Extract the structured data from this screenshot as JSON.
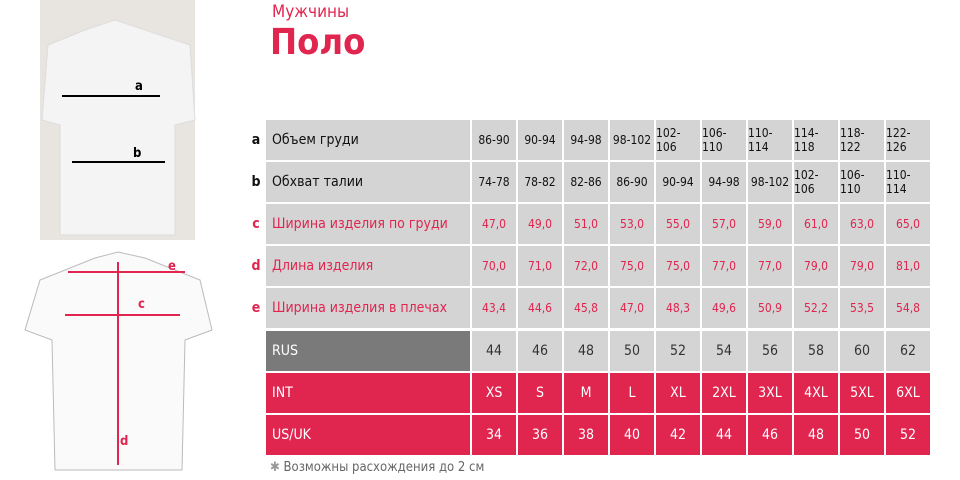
{
  "header": {
    "subtitle": "Мужчины",
    "title": "Поло"
  },
  "diagram": {
    "labels": [
      "a",
      "b",
      "c",
      "d",
      "e"
    ]
  },
  "table": {
    "measurements": [
      {
        "letter": "a",
        "label": "Объем груди",
        "cells": [
          "86-90",
          "90-94",
          "94-98",
          "98-102",
          "102-106",
          "106-110",
          "110-114",
          "114-118",
          "118-122",
          "122-126"
        ]
      },
      {
        "letter": "b",
        "label": "Обхват талии",
        "cells": [
          "74-78",
          "78-82",
          "82-86",
          "86-90",
          "90-94",
          "94-98",
          "98-102",
          "102-106",
          "106-110",
          "110-114"
        ]
      },
      {
        "letter": "c",
        "label": "Ширина изделия по груди",
        "cells": [
          "47,0",
          "49,0",
          "51,0",
          "53,0",
          "55,0",
          "57,0",
          "59,0",
          "61,0",
          "63,0",
          "65,0"
        ]
      },
      {
        "letter": "d",
        "label": "Длина изделия",
        "cells": [
          "70,0",
          "71,0",
          "72,0",
          "75,0",
          "75,0",
          "77,0",
          "77,0",
          "79,0",
          "79,0",
          "81,0"
        ]
      },
      {
        "letter": "e",
        "label": "Ширина изделия в плечах",
        "cells": [
          "43,4",
          "44,6",
          "45,8",
          "47,0",
          "48,3",
          "49,6",
          "50,9",
          "52,2",
          "53,5",
          "54,8"
        ]
      }
    ],
    "sizes": [
      {
        "label": "RUS",
        "cells": [
          "44",
          "46",
          "48",
          "50",
          "52",
          "54",
          "56",
          "58",
          "60",
          "62"
        ]
      },
      {
        "label": "INT",
        "cells": [
          "XS",
          "S",
          "M",
          "L",
          "XL",
          "2XL",
          "3XL",
          "4XL",
          "5XL",
          "6XL"
        ]
      },
      {
        "label": "US/UK",
        "cells": [
          "34",
          "36",
          "38",
          "40",
          "42",
          "44",
          "46",
          "48",
          "50",
          "52"
        ]
      }
    ]
  },
  "footnote": "Возможны расхождения до 2 см"
}
